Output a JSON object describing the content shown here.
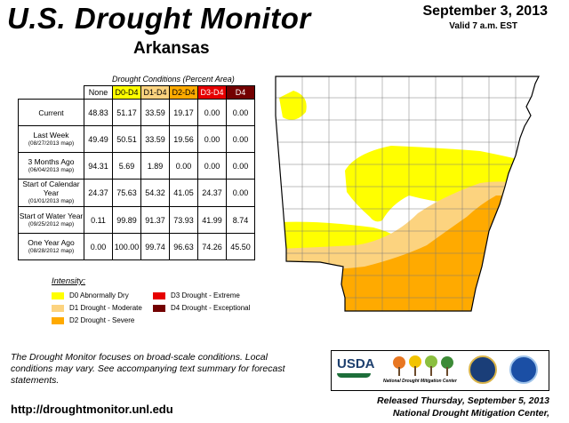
{
  "header": {
    "title": "U.S. Drought Monitor",
    "state": "Arkansas",
    "date": "September 3, 2013",
    "valid": "Valid 7 a.m. EST"
  },
  "table": {
    "caption": "Drought Conditions (Percent Area)",
    "columns": [
      "None",
      "D0-D4",
      "D1-D4",
      "D2-D4",
      "D3-D4",
      "D4"
    ],
    "rows": [
      {
        "label": "Current",
        "sub": "",
        "values": [
          "48.83",
          "51.17",
          "33.59",
          "19.17",
          "0.00",
          "0.00"
        ]
      },
      {
        "label": "Last Week",
        "sub": "(08/27/2013 map)",
        "values": [
          "49.49",
          "50.51",
          "33.59",
          "19.56",
          "0.00",
          "0.00"
        ]
      },
      {
        "label": "3 Months Ago",
        "sub": "(06/04/2013 map)",
        "values": [
          "94.31",
          "5.69",
          "1.89",
          "0.00",
          "0.00",
          "0.00"
        ]
      },
      {
        "label": "Start of Calendar Year",
        "sub": "(01/01/2013 map)",
        "values": [
          "24.37",
          "75.63",
          "54.32",
          "41.05",
          "24.37",
          "0.00"
        ]
      },
      {
        "label": "Start of Water Year",
        "sub": "(09/25/2012 map)",
        "values": [
          "0.11",
          "99.89",
          "91.37",
          "73.93",
          "41.99",
          "8.74"
        ]
      },
      {
        "label": "One Year Ago",
        "sub": "(08/28/2012 map)",
        "values": [
          "0.00",
          "100.00",
          "99.74",
          "96.63",
          "74.26",
          "45.50"
        ]
      }
    ]
  },
  "legend": {
    "title": "Intensity:",
    "items": [
      {
        "label": "D0 Abnormally Dry",
        "color": "#ffff00"
      },
      {
        "label": "D1 Drought - Moderate",
        "color": "#fcd37f"
      },
      {
        "label": "D2 Drought - Severe",
        "color": "#ffaa00"
      },
      {
        "label": "D3 Drought - Extreme",
        "color": "#e60000"
      },
      {
        "label": "D4 Drought - Exceptional",
        "color": "#730000"
      }
    ]
  },
  "footer": {
    "note": "The Drought Monitor focuses on broad-scale conditions. Local conditions may vary. See accompanying text summary for forecast statements.",
    "url": "http://droughtmonitor.unl.edu",
    "released": "Released Thursday, September 5, 2013",
    "author": "National Drought Mitigation Center,"
  },
  "logos": {
    "usda": "USDA",
    "ndmc": "National Drought Mitigation Center"
  },
  "map_colors": {
    "none": "#ffffff",
    "d0": "#ffff00",
    "d1": "#fcd37f",
    "d2": "#ffaa00",
    "border": "#000000",
    "county": "#7a7a7a"
  }
}
